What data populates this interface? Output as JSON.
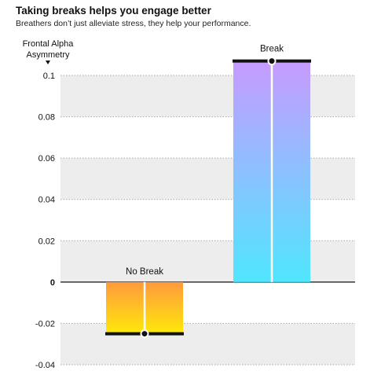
{
  "header": {
    "title": "Taking breaks helps you engage better",
    "subtitle": "Breathers don’t just alleviate stress, they help your performance."
  },
  "chart_data": {
    "type": "bar",
    "ylabel_lines": [
      "Frontal Alpha",
      "Asymmetry"
    ],
    "ylim": [
      -0.04,
      0.1
    ],
    "yticks": [
      {
        "value": 0.1,
        "label": "0.1"
      },
      {
        "value": 0.08,
        "label": "0.08"
      },
      {
        "value": 0.06,
        "label": "0.06"
      },
      {
        "value": 0.04,
        "label": "0.04"
      },
      {
        "value": 0.02,
        "label": "0.02"
      },
      {
        "value": 0,
        "label": "0"
      },
      {
        "value": -0.02,
        "label": "-0.02"
      },
      {
        "value": -0.04,
        "label": "-0.04"
      }
    ],
    "categories": [
      "No Break",
      "Break"
    ],
    "values": [
      -0.025,
      0.107
    ],
    "gradients": [
      {
        "top": "#ff9a3c",
        "bottom": "#ffe90a"
      },
      {
        "top": "#c79bff",
        "bottom": "#50e6ff"
      }
    ],
    "grid": true,
    "band_color": "#ededed"
  }
}
